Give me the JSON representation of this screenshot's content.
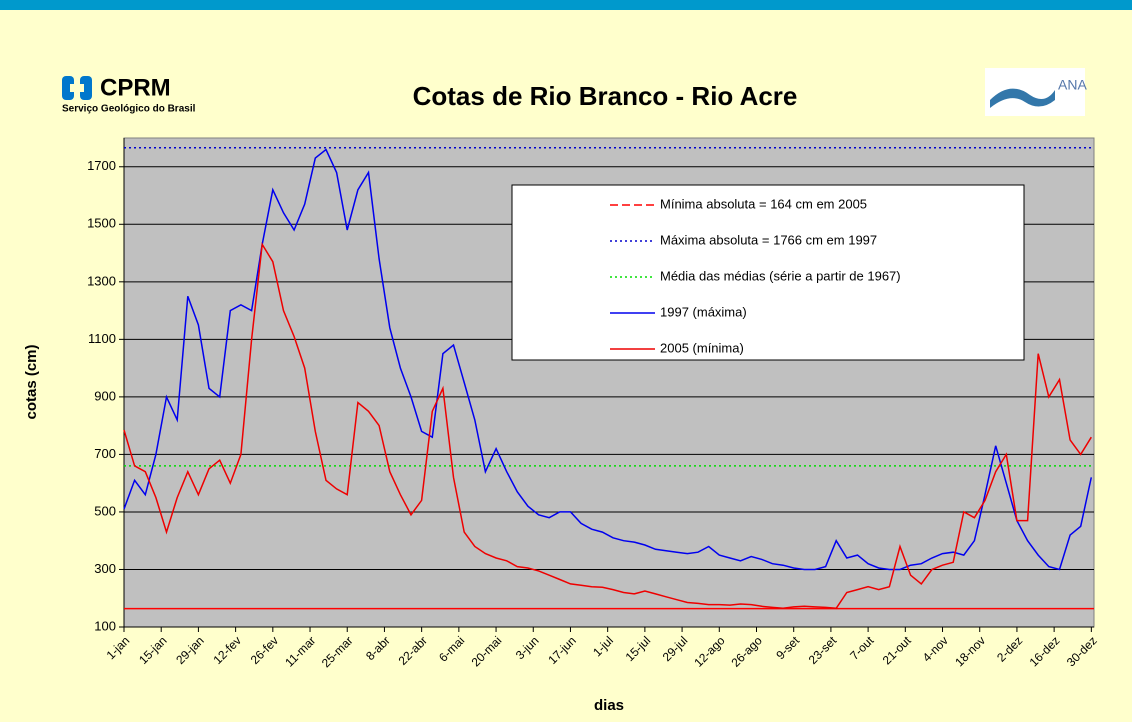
{
  "header": {
    "logo_left": "CPRM",
    "logo_left_subtitle": "Serviço Geológico do Brasil",
    "logo_right": "ANA"
  },
  "chart_data": {
    "type": "line",
    "title": "Cotas de Rio Branco -  Rio Acre",
    "y_label": "cotas (cm)",
    "x_label": "dias",
    "xlim": [
      1,
      366
    ],
    "ylim": [
      100,
      1800
    ],
    "yticks": [
      100,
      300,
      500,
      700,
      900,
      1100,
      1300,
      1500,
      1700
    ],
    "xticks": [
      {
        "value": 1,
        "label": "1-jan"
      },
      {
        "value": 15,
        "label": "15-jan"
      },
      {
        "value": 29,
        "label": "29-jan"
      },
      {
        "value": 43,
        "label": "12-fev"
      },
      {
        "value": 57,
        "label": "26-fev"
      },
      {
        "value": 71,
        "label": "11-mar"
      },
      {
        "value": 85,
        "label": "25-mar"
      },
      {
        "value": 99,
        "label": "8-abr"
      },
      {
        "value": 113,
        "label": "22-abr"
      },
      {
        "value": 127,
        "label": "6-mai"
      },
      {
        "value": 141,
        "label": "20-mai"
      },
      {
        "value": 155,
        "label": "3-jun"
      },
      {
        "value": 169,
        "label": "17-jun"
      },
      {
        "value": 183,
        "label": "1-jul"
      },
      {
        "value": 197,
        "label": "15-jul"
      },
      {
        "value": 211,
        "label": "29-jul"
      },
      {
        "value": 225,
        "label": "12-ago"
      },
      {
        "value": 239,
        "label": "26-ago"
      },
      {
        "value": 253,
        "label": "9-set"
      },
      {
        "value": 267,
        "label": "23-set"
      },
      {
        "value": 281,
        "label": "7-out"
      },
      {
        "value": 295,
        "label": "21-out"
      },
      {
        "value": 309,
        "label": "4-nov"
      },
      {
        "value": 323,
        "label": "18-nov"
      },
      {
        "value": 337,
        "label": "2-dez"
      },
      {
        "value": 351,
        "label": "16-dez"
      },
      {
        "value": 365,
        "label": "30-dez"
      }
    ],
    "grid": true,
    "background": "#c0c0c0",
    "reference_lines": [
      {
        "name": "Mínima absoluta = 164 cm em 2005",
        "value": 164,
        "color": "#ff0000",
        "dash": "solid"
      },
      {
        "name": "Máxima absoluta = 1766 cm em 1997",
        "value": 1766,
        "color": "#0000cc",
        "dash": "dotted"
      },
      {
        "name": "Média das médias (série a partir de 1967)",
        "value": 660,
        "color": "#00dd00",
        "dash": "dotted"
      }
    ],
    "x": [
      1,
      5,
      9,
      13,
      17,
      21,
      25,
      29,
      33,
      37,
      41,
      45,
      49,
      53,
      57,
      61,
      65,
      69,
      73,
      77,
      81,
      85,
      89,
      93,
      97,
      101,
      105,
      109,
      113,
      117,
      121,
      125,
      129,
      133,
      137,
      141,
      145,
      149,
      153,
      157,
      161,
      165,
      169,
      173,
      177,
      181,
      185,
      189,
      193,
      197,
      201,
      205,
      209,
      213,
      217,
      221,
      225,
      229,
      233,
      237,
      241,
      245,
      249,
      253,
      257,
      261,
      265,
      269,
      273,
      277,
      281,
      285,
      289,
      293,
      297,
      301,
      305,
      309,
      313,
      317,
      321,
      325,
      329,
      333,
      337,
      341,
      345,
      349,
      353,
      357,
      361,
      365
    ],
    "series": [
      {
        "name": "1997 (máxima)",
        "color": "#0000ee",
        "values": [
          510,
          610,
          560,
          700,
          900,
          820,
          1250,
          1150,
          930,
          900,
          1200,
          1220,
          1200,
          1430,
          1620,
          1540,
          1480,
          1570,
          1730,
          1760,
          1680,
          1480,
          1620,
          1680,
          1380,
          1140,
          1000,
          900,
          780,
          760,
          1050,
          1080,
          950,
          820,
          640,
          720,
          640,
          570,
          520,
          490,
          480,
          500,
          500,
          460,
          440,
          430,
          410,
          400,
          395,
          385,
          370,
          365,
          360,
          355,
          360,
          380,
          350,
          340,
          330,
          345,
          335,
          320,
          315,
          305,
          300,
          300,
          310,
          400,
          340,
          350,
          320,
          305,
          300,
          300,
          315,
          320,
          340,
          355,
          360,
          350,
          400,
          560,
          730,
          600,
          470,
          400,
          350,
          310,
          300,
          420,
          450,
          620
        ]
      },
      {
        "name": "2005 (mínima)",
        "color": "#ee0000",
        "values": [
          785,
          660,
          640,
          550,
          430,
          550,
          640,
          560,
          650,
          680,
          600,
          700,
          1100,
          1430,
          1370,
          1200,
          1110,
          1000,
          780,
          610,
          580,
          560,
          880,
          850,
          800,
          640,
          560,
          490,
          540,
          850,
          930,
          620,
          430,
          380,
          355,
          340,
          330,
          310,
          305,
          295,
          280,
          265,
          250,
          245,
          240,
          238,
          230,
          220,
          215,
          225,
          215,
          205,
          195,
          185,
          182,
          178,
          178,
          176,
          180,
          178,
          172,
          168,
          165,
          170,
          172,
          170,
          168,
          165,
          220,
          230,
          240,
          230,
          240,
          380,
          280,
          250,
          300,
          315,
          325,
          500,
          480,
          540,
          640,
          700,
          470,
          470,
          1050,
          900,
          960,
          750,
          700,
          760
        ]
      }
    ],
    "legend": "top-right"
  }
}
